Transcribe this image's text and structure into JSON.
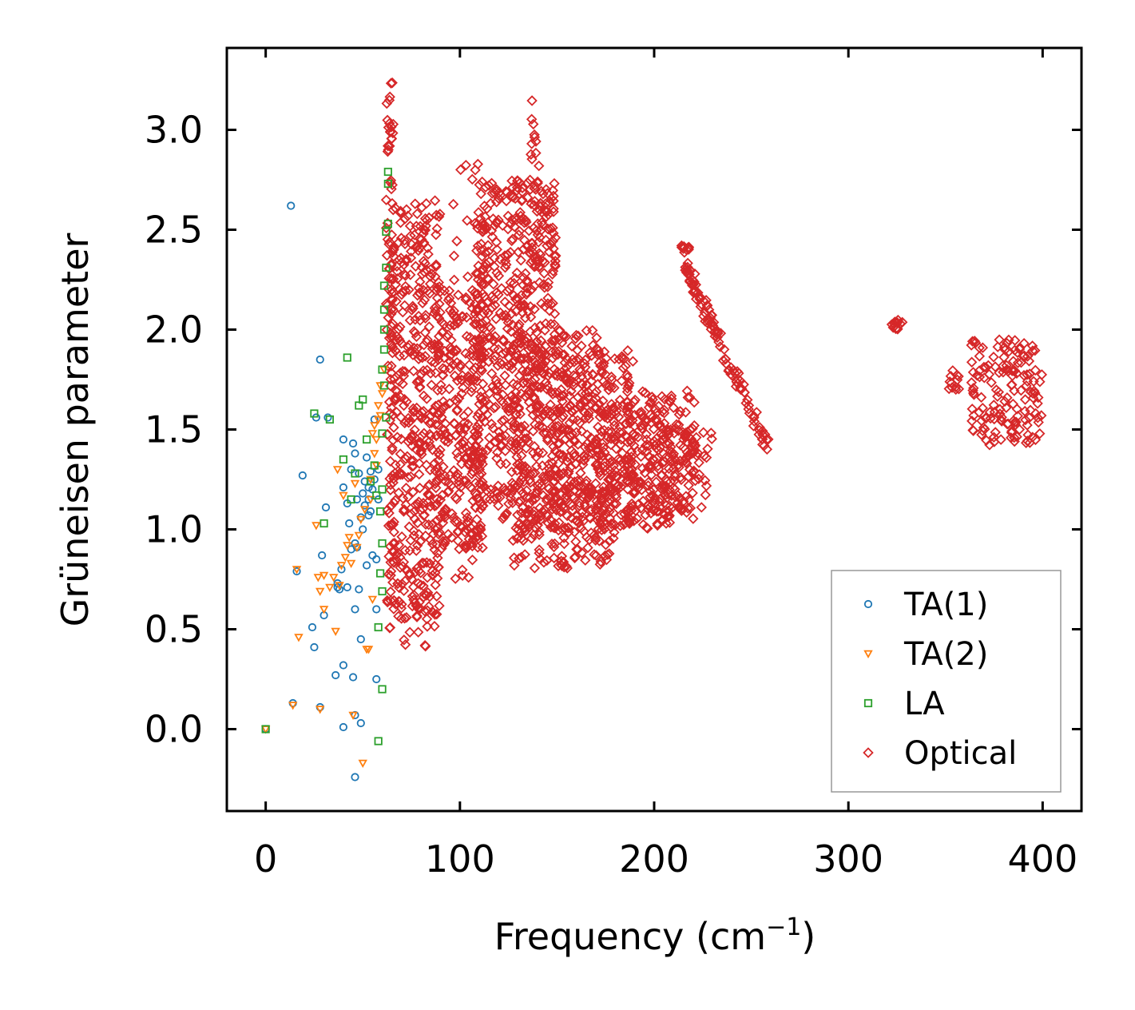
{
  "chart_data": {
    "type": "scatter",
    "title": "",
    "xlabel": "Frequency (cm",
    "xlabel_sup": "−1",
    "xlabel_close": ")",
    "ylabel": "Grüneisen parameter",
    "xlim": [
      -20,
      420
    ],
    "ylim": [
      -0.41,
      3.41
    ],
    "xticks": [
      0,
      100,
      200,
      300,
      400
    ],
    "xtick_labels": [
      "0",
      "100",
      "200",
      "300",
      "400"
    ],
    "yticks": [
      0.0,
      0.5,
      1.0,
      1.5,
      2.0,
      2.5,
      3.0
    ],
    "ytick_labels": [
      "0.0",
      "0.5",
      "1.0",
      "1.5",
      "2.0",
      "2.5",
      "3.0"
    ],
    "grid": false,
    "legend_position": "bottom-right",
    "series": [
      {
        "name": "TA(1)",
        "marker": "circle",
        "color": "#1f77b4",
        "points": [
          [
            0,
            0.0
          ],
          [
            13,
            2.62
          ],
          [
            14,
            0.13
          ],
          [
            16,
            0.79
          ],
          [
            19,
            1.27
          ],
          [
            24,
            0.51
          ],
          [
            25,
            0.41
          ],
          [
            26,
            1.56
          ],
          [
            28,
            0.11
          ],
          [
            28,
            1.85
          ],
          [
            29,
            0.87
          ],
          [
            30,
            0.57
          ],
          [
            31,
            1.11
          ],
          [
            32,
            1.56
          ],
          [
            36,
            0.27
          ],
          [
            37,
            0.73
          ],
          [
            37,
            0.71
          ],
          [
            38,
            0.7
          ],
          [
            39,
            0.8
          ],
          [
            40,
            0.01
          ],
          [
            40,
            0.32
          ],
          [
            40,
            1.45
          ],
          [
            40,
            1.21
          ],
          [
            42,
            0.71
          ],
          [
            42,
            1.13
          ],
          [
            43,
            1.03
          ],
          [
            44,
            1.3
          ],
          [
            44,
            0.9
          ],
          [
            45,
            1.43
          ],
          [
            45,
            0.26
          ],
          [
            46,
            0.93
          ],
          [
            46,
            1.38
          ],
          [
            46,
            0.6
          ],
          [
            46,
            0.07
          ],
          [
            46,
            -0.24
          ],
          [
            47,
            1.15
          ],
          [
            47,
            0.91
          ],
          [
            48,
            0.7
          ],
          [
            48,
            1.28
          ],
          [
            49,
            1.06
          ],
          [
            49,
            0.45
          ],
          [
            49,
            0.03
          ],
          [
            50,
            1.18
          ],
          [
            50,
            1.0
          ],
          [
            51,
            1.12
          ],
          [
            51,
            1.24
          ],
          [
            52,
            0.82
          ],
          [
            52,
            1.36
          ],
          [
            53,
            1.07
          ],
          [
            53,
            1.21
          ],
          [
            53,
            1.15
          ],
          [
            54,
            1.29
          ],
          [
            54,
            1.09
          ],
          [
            55,
            1.2
          ],
          [
            55,
            0.87
          ],
          [
            56,
            1.55
          ],
          [
            56,
            1.25
          ],
          [
            57,
            0.6
          ],
          [
            57,
            0.25
          ],
          [
            57,
            0.85
          ],
          [
            58,
            1.15
          ],
          [
            58,
            1.3
          ]
        ]
      },
      {
        "name": "TA(2)",
        "marker": "triangle-down",
        "color": "#ff7f0e",
        "points": [
          [
            0,
            0.0
          ],
          [
            14,
            0.12
          ],
          [
            16,
            0.8
          ],
          [
            17,
            0.46
          ],
          [
            26,
            1.02
          ],
          [
            27,
            0.76
          ],
          [
            28,
            0.69
          ],
          [
            28,
            0.1
          ],
          [
            30,
            0.6
          ],
          [
            30,
            0.77
          ],
          [
            33,
            0.71
          ],
          [
            35,
            0.76
          ],
          [
            36,
            0.49
          ],
          [
            37,
            1.3
          ],
          [
            38,
            0.72
          ],
          [
            39,
            0.82
          ],
          [
            40,
            1.17
          ],
          [
            41,
            0.86
          ],
          [
            42,
            0.92
          ],
          [
            43,
            0.96
          ],
          [
            44,
            0.83
          ],
          [
            45,
            0.07
          ],
          [
            46,
            1.23
          ],
          [
            47,
            0.91
          ],
          [
            48,
            0.97
          ],
          [
            49,
            1.05
          ],
          [
            50,
            -0.17
          ],
          [
            51,
            1.1
          ],
          [
            52,
            0.4
          ],
          [
            53,
            0.4
          ],
          [
            54,
            1.15
          ],
          [
            54,
            1.25
          ],
          [
            55,
            1.48
          ],
          [
            55,
            0.65
          ],
          [
            56,
            1.38
          ],
          [
            56,
            1.52
          ],
          [
            57,
            1.32
          ],
          [
            57,
            1.45
          ],
          [
            58,
            1.55
          ],
          [
            58,
            1.62
          ],
          [
            59,
            1.57
          ],
          [
            59,
            1.72
          ],
          [
            60,
            1.68
          ],
          [
            61,
            1.8
          ]
        ]
      },
      {
        "name": "LA",
        "marker": "square",
        "color": "#2ca02c",
        "points": [
          [
            0,
            0.0
          ],
          [
            25,
            1.58
          ],
          [
            30,
            1.03
          ],
          [
            33,
            1.55
          ],
          [
            40,
            1.35
          ],
          [
            42,
            1.86
          ],
          [
            44,
            1.15
          ],
          [
            46,
            1.28
          ],
          [
            48,
            1.62
          ],
          [
            50,
            1.65
          ],
          [
            52,
            1.45
          ],
          [
            54,
            1.24
          ],
          [
            56,
            1.32
          ],
          [
            57,
            1.17
          ],
          [
            58,
            -0.06
          ],
          [
            58,
            0.51
          ],
          [
            59,
            0.78
          ],
          [
            59,
            1.09
          ],
          [
            60,
            0.2
          ],
          [
            60,
            0.69
          ],
          [
            60,
            0.93
          ],
          [
            60,
            1.2
          ],
          [
            60,
            1.48
          ],
          [
            60,
            1.8
          ],
          [
            61,
            2.0
          ],
          [
            61,
            1.9
          ],
          [
            61,
            2.1
          ],
          [
            61,
            2.22
          ],
          [
            61,
            1.72
          ],
          [
            62,
            1.56
          ],
          [
            62,
            2.31
          ],
          [
            62,
            2.49
          ],
          [
            63,
            2.53
          ],
          [
            63,
            2.73
          ],
          [
            63,
            2.79
          ]
        ]
      },
      {
        "name": "Optical",
        "marker": "diamond",
        "color": "#d62728",
        "clusters": [
          {
            "x": [
              62,
              66
            ],
            "y": [
              1.6,
              3.24
            ],
            "n": 60
          },
          {
            "x": [
              62,
              68
            ],
            "y": [
              0.5,
              1.6
            ],
            "n": 30
          },
          {
            "x": [
              64,
              90
            ],
            "y": [
              0.55,
              2.65
            ],
            "n": 430
          },
          {
            "x": [
              70,
              88
            ],
            "y": [
              0.38,
              0.85
            ],
            "n": 20
          },
          {
            "x": [
              88,
              112
            ],
            "y": [
              0.9,
              2.2
            ],
            "n": 260
          },
          {
            "x": [
              96,
              112
            ],
            "y": [
              0.75,
              2.9
            ],
            "n": 50
          },
          {
            "x": [
              108,
              150
            ],
            "y": [
              1.0,
              2.75
            ],
            "n": 600
          },
          {
            "x": [
              136,
              142
            ],
            "y": [
              2.3,
              3.15
            ],
            "n": 25
          },
          {
            "x": [
              125,
              175
            ],
            "y": [
              0.8,
              2.0
            ],
            "n": 300
          },
          {
            "x": [
              150,
              190
            ],
            "y": [
              1.0,
              1.9
            ],
            "n": 250
          },
          {
            "x": [
              170,
              210
            ],
            "y": [
              1.0,
              1.65
            ],
            "n": 160
          },
          {
            "x": [
              185,
              222
            ],
            "y": [
              1.05,
              1.7
            ],
            "n": 160
          },
          {
            "x": [
              205,
              230
            ],
            "y": [
              1.1,
              1.5
            ],
            "n": 60
          },
          {
            "x": [
              152,
              180
            ],
            "y": [
              0.8,
              1.2
            ],
            "n": 40
          },
          {
            "x": [
              214,
              218
            ],
            "y": [
              2.38,
              2.42
            ],
            "n": 10
          },
          {
            "x": [
              322,
              328
            ],
            "y": [
              2.0,
              2.05
            ],
            "n": 14
          },
          {
            "x": [
              350,
              358
            ],
            "y": [
              1.7,
              1.8
            ],
            "n": 12
          },
          {
            "x": [
              363,
              400
            ],
            "y": [
              1.42,
              1.95
            ],
            "n": 150
          }
        ],
        "lines": [
          {
            "x0": 216,
            "y0": 2.32,
            "x1": 258,
            "y1": 1.42,
            "n": 110
          }
        ]
      }
    ]
  }
}
